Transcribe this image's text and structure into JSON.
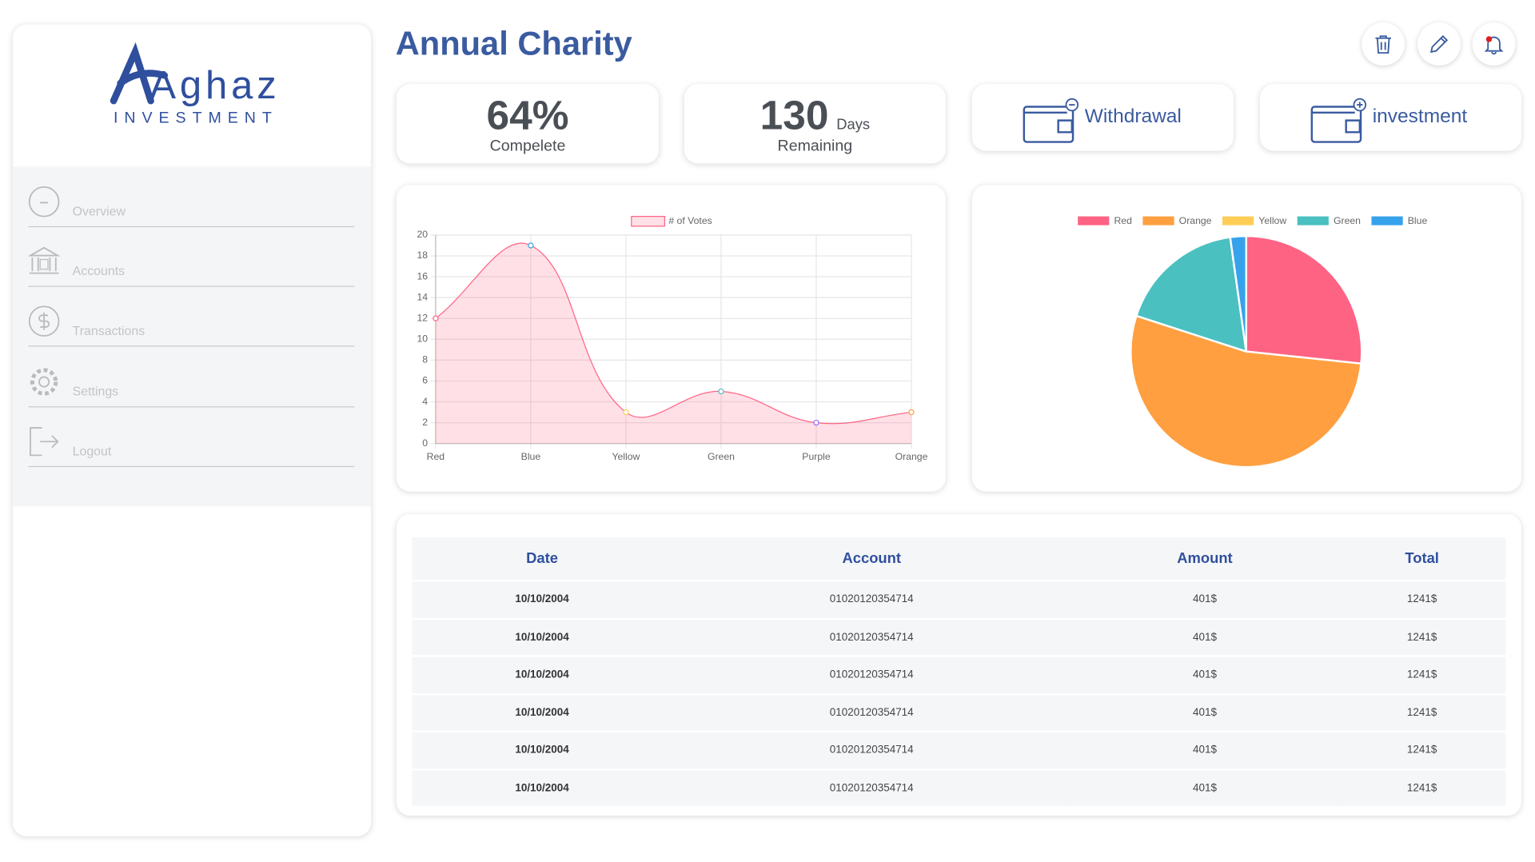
{
  "sidebar": {
    "brand": "Aghaz",
    "tagline": "INVESTMENT",
    "menu": [
      "Overview",
      "Accounts",
      "Transactions",
      "Settings",
      "Logout"
    ]
  },
  "header": {
    "title": "Annual Charity"
  },
  "stats": [
    {
      "value": "64%",
      "label": "Compelete"
    },
    {
      "value": "130",
      "unit": "Days",
      "label": "Remaining"
    }
  ],
  "actions": [
    "Withdrawal",
    "investment"
  ],
  "chart_data": [
    {
      "type": "line",
      "categories": [
        "Red",
        "Blue",
        "Yellow",
        "Green",
        "Purple",
        "Orange"
      ],
      "series": [
        {
          "name": "# of Votes",
          "color": "#ff6384",
          "values": [
            12,
            19,
            3,
            5,
            2,
            3
          ]
        }
      ],
      "point_colors": [
        "#ff6384",
        "#36a2eb",
        "#ffcd56",
        "#4bc0c0",
        "#9966ff",
        "#ff9f40"
      ],
      "ylim": [
        0,
        20
      ],
      "yticks": [
        0,
        2,
        4,
        6,
        8,
        10,
        12,
        14,
        16,
        18,
        20
      ],
      "grid": true
    },
    {
      "type": "pie",
      "categories": [
        "Red",
        "Orange",
        "Yellow",
        "Green",
        "Blue"
      ],
      "values": [
        12,
        24,
        0,
        8,
        1
      ],
      "colors": [
        "#ff6384",
        "#ff9f40",
        "#ffcd56",
        "#4bc0c0",
        "#36a2eb"
      ]
    }
  ],
  "table": {
    "columns": [
      "Date",
      "Account",
      "Amount",
      "Total"
    ],
    "rows": [
      [
        "10/10/2004",
        "01020120354714",
        "401$",
        "1241$"
      ],
      [
        "10/10/2004",
        "01020120354714",
        "401$",
        "1241$"
      ],
      [
        "10/10/2004",
        "01020120354714",
        "401$",
        "1241$"
      ],
      [
        "10/10/2004",
        "01020120354714",
        "401$",
        "1241$"
      ],
      [
        "10/10/2004",
        "01020120354714",
        "401$",
        "1241$"
      ],
      [
        "10/10/2004",
        "01020120354714",
        "401$",
        "1241$"
      ]
    ]
  }
}
